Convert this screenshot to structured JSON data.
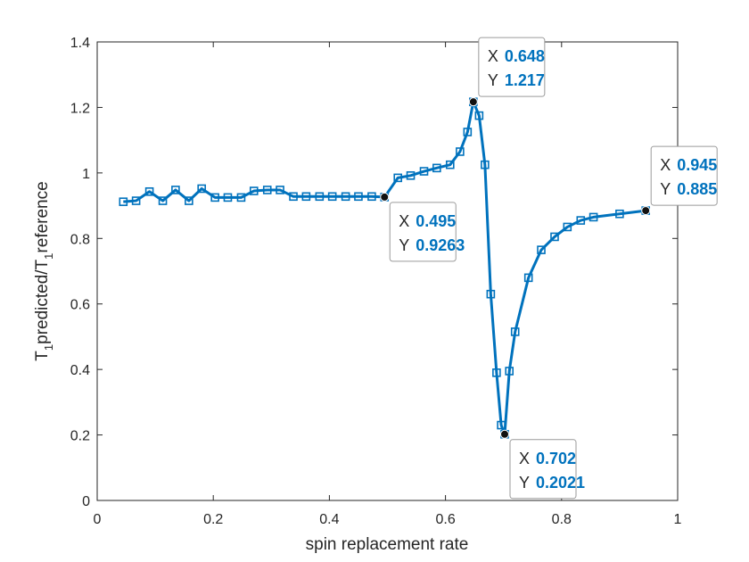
{
  "chart_data": {
    "type": "line",
    "xlabel": "spin replacement rate",
    "ylabel_parts": {
      "t1": "T",
      "sub1": "1",
      "mid": "predicted/T",
      "sub2": "1",
      "end": "reference"
    },
    "xlim": [
      0,
      1
    ],
    "ylim": [
      0,
      1.4
    ],
    "x_ticks": [
      0,
      0.2,
      0.4,
      0.6,
      0.8,
      1
    ],
    "x_tick_labels": [
      "0",
      "0.2",
      "0.4",
      "0.6",
      "0.8",
      "1"
    ],
    "y_ticks": [
      0,
      0.2,
      0.4,
      0.6,
      0.8,
      1,
      1.2,
      1.4
    ],
    "y_tick_labels": [
      "0",
      "0.2",
      "0.4",
      "0.6",
      "0.8",
      "1",
      "1.2",
      "1.4"
    ],
    "grid": false,
    "line_color": "#0072BD",
    "series": [
      {
        "x": [
          0.045,
          0.067,
          0.09,
          0.113,
          0.135,
          0.158,
          0.18,
          0.203,
          0.225,
          0.248,
          0.27,
          0.293,
          0.315,
          0.338,
          0.36,
          0.383,
          0.405,
          0.428,
          0.45,
          0.473,
          0.495,
          0.518,
          0.54,
          0.563,
          0.585,
          0.608,
          0.625,
          0.638,
          0.648,
          0.658,
          0.668,
          0.678,
          0.688,
          0.696,
          0.702,
          0.71,
          0.72,
          0.743,
          0.765,
          0.788,
          0.81,
          0.833,
          0.855,
          0.9,
          0.945
        ],
        "y": [
          0.912,
          0.915,
          0.943,
          0.915,
          0.948,
          0.915,
          0.952,
          0.925,
          0.925,
          0.925,
          0.945,
          0.948,
          0.948,
          0.928,
          0.928,
          0.928,
          0.928,
          0.928,
          0.928,
          0.928,
          0.9263,
          0.985,
          0.992,
          1.005,
          1.015,
          1.025,
          1.065,
          1.125,
          1.217,
          1.175,
          1.025,
          0.63,
          0.39,
          0.23,
          0.2021,
          0.395,
          0.515,
          0.68,
          0.765,
          0.805,
          0.835,
          0.855,
          0.865,
          0.875,
          0.885
        ]
      }
    ],
    "datatips": [
      {
        "x": 0.495,
        "y": 0.9263,
        "x_label": "X",
        "y_label": "Y",
        "x_text": "0.495",
        "y_text": "0.9263",
        "placement": "below-right"
      },
      {
        "x": 0.648,
        "y": 1.217,
        "x_label": "X",
        "y_label": "Y",
        "x_text": "0.648",
        "y_text": "1.217",
        "placement": "above-right"
      },
      {
        "x": 0.702,
        "y": 0.2021,
        "x_label": "X",
        "y_label": "Y",
        "x_text": "0.702",
        "y_text": "0.2021",
        "placement": "below-right"
      },
      {
        "x": 0.945,
        "y": 0.885,
        "x_label": "X",
        "y_label": "Y",
        "x_text": "0.945",
        "y_text": "0.885",
        "placement": "above-right"
      }
    ],
    "tip_value_color": "#0072BD"
  }
}
